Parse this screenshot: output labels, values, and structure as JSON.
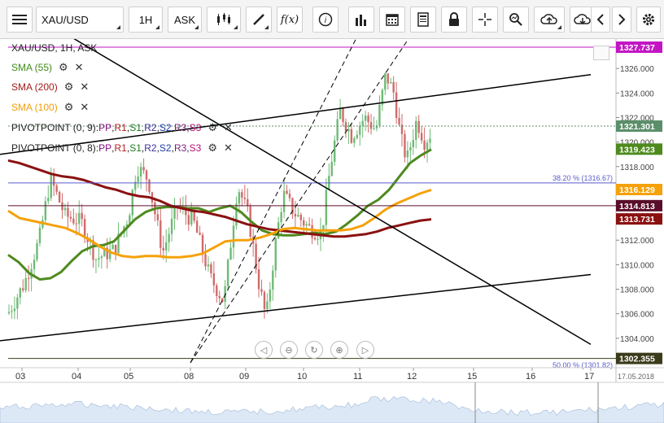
{
  "toolbar": {
    "symbol": "XAU/USD",
    "timeframe": "1H",
    "price_type": "ASK",
    "icons": [
      "menu-icon",
      "candles-icon",
      "draw-icon",
      "fx-icon",
      "info-icon",
      "bars-icon",
      "calendar-icon",
      "report-icon",
      "lock-icon",
      "crosshair-icon",
      "zoom-icon",
      "upload-icon",
      "download-icon",
      "prev-icon",
      "next-icon",
      "settings-icon"
    ]
  },
  "legend": {
    "instrument": "XAU/USD, 1H, ASK",
    "sma55": "SMA (55)",
    "sma200": "SMA (200)",
    "sma100": "SMA (100)",
    "pivot1": "PIVOTPOINT (0, 9)",
    "pivot2": "PIVOTPOINT (0, 8)",
    "pivot_levels": [
      "PP",
      "R1",
      "S1",
      "R2",
      "S2",
      "R3",
      "S3"
    ],
    "separator": ": ",
    "comma": ", "
  },
  "colors": {
    "sma55": "#4e8a1e",
    "sma200": "#8b1111",
    "sma100": "#f5a10a",
    "up": "#6fba76",
    "down": "#cf6b6b",
    "trend": "#000000",
    "price_tag": "#5b8f6a",
    "fib": "#5a5acc",
    "pivot_top": "#c316c3"
  },
  "chart_data": {
    "type": "candlestick",
    "ylim": [
      1302.0,
      1328.4
    ],
    "y_ticks": [
      "1326.000",
      "1324.000",
      "1322.000",
      "1320.000",
      "1318.000",
      "1316.000",
      "1314.000",
      "1312.000",
      "1310.000",
      "1308.000",
      "1306.000",
      "1304.000"
    ],
    "x_ticks": [
      "03",
      "04",
      "05",
      "08",
      "09",
      "10",
      "11",
      "12",
      "15",
      "16",
      "17",
      "17.05.2018"
    ],
    "price_tags": [
      {
        "label": "1327.737",
        "bg": "#c316c3"
      },
      {
        "label": "1321.301",
        "bg": "#5b8f6a"
      },
      {
        "label": "1319.423",
        "bg": "#4e8a1e"
      },
      {
        "label": "1316.129",
        "bg": "#f5a10a"
      },
      {
        "label": "1314.813",
        "bg": "#5a0d2a"
      },
      {
        "label": "1313.731",
        "bg": "#8b1111"
      },
      {
        "label": "1302.355",
        "bg": "#3b3b1b"
      }
    ],
    "annotations": [
      "38.20 % (1316.67)",
      "50.00 % (1301.82)"
    ],
    "current_price": 1321.301,
    "series": [
      {
        "name": "SMA (55)",
        "values": [
          1310.8,
          1310.2,
          1309.3,
          1308.8,
          1308.9,
          1309.4,
          1310.3,
          1311.1,
          1311.5,
          1311.6,
          1311.9,
          1312.8,
          1313.7,
          1314.3,
          1314.6,
          1314.7,
          1314.7,
          1314.6,
          1314.6,
          1314.3,
          1314.6,
          1314.8,
          1314.3,
          1313.5,
          1312.8,
          1312.5,
          1312.4,
          1312.4,
          1312.5,
          1312.6,
          1312.5,
          1312.7,
          1313.3,
          1314.0,
          1314.8,
          1315.3,
          1316.1,
          1317.2,
          1318.3,
          1318.9,
          1319.4
        ]
      },
      {
        "name": "SMA (200)",
        "values": [
          1318.5,
          1318.3,
          1318.0,
          1317.7,
          1317.4,
          1317.2,
          1317.1,
          1316.9,
          1316.6,
          1316.3,
          1316.1,
          1315.8,
          1315.6,
          1315.5,
          1315.2,
          1314.8,
          1314.6,
          1314.4,
          1314.3,
          1314.1,
          1313.9,
          1313.6,
          1313.3,
          1313.1,
          1312.9,
          1312.8,
          1312.7,
          1312.6,
          1312.5,
          1312.4,
          1312.3,
          1312.3,
          1312.4,
          1312.5,
          1312.7,
          1313.0,
          1313.2,
          1313.4,
          1313.6,
          1313.7
        ]
      },
      {
        "name": "SMA (100)",
        "values": [
          1314.4,
          1313.8,
          1313.6,
          1313.4,
          1313.2,
          1313.0,
          1312.6,
          1312.1,
          1311.5,
          1311.0,
          1310.7,
          1310.6,
          1310.7,
          1310.7,
          1310.6,
          1310.6,
          1310.7,
          1310.9,
          1311.4,
          1311.9,
          1312.0,
          1312.0,
          1312.2,
          1312.5,
          1312.9,
          1313.0,
          1312.9,
          1312.8,
          1312.8,
          1312.8,
          1312.9,
          1313.2,
          1313.8,
          1314.5,
          1315.0,
          1315.4,
          1315.8,
          1316.1
        ]
      }
    ],
    "trendlines": [
      {
        "from": [
          "02",
          1332.0
        ],
        "to": [
          "17",
          1303.5
        ],
        "style": "solid"
      },
      {
        "from": [
          "02",
          1319.0
        ],
        "to": [
          "17",
          1325.5
        ],
        "style": "solid"
      },
      {
        "from": [
          "02",
          1303.8
        ],
        "to": [
          "17",
          1309.2
        ],
        "style": "solid"
      },
      {
        "from": [
          "08",
          1302.0
        ],
        "to": [
          "11",
          1329.0
        ],
        "style": "dashed"
      },
      {
        "from": [
          "08",
          1302.0
        ],
        "to": [
          "12",
          1329.0
        ],
        "style": "dashed"
      }
    ],
    "horizontal_lines": [
      1327.737,
      1316.67,
      1314.813,
      1302.355
    ],
    "navigator_controls": [
      "back-icon",
      "zoom-out-icon",
      "reset-icon",
      "zoom-in-icon",
      "forward-icon"
    ]
  }
}
